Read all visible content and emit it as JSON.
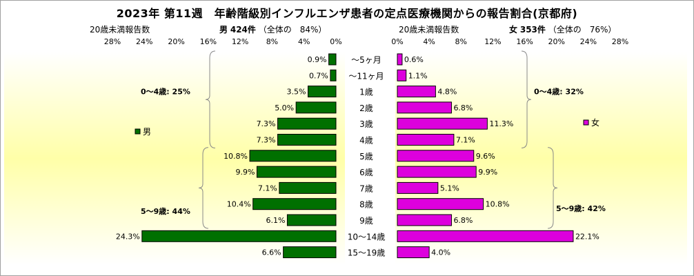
{
  "title": "2023年 第11週　年齢階級別インフルエンザ患者の定点医療機関からの報告割合(京都府)",
  "left_header": {
    "caption": "20歳未満報告数",
    "sex": "男",
    "count": "424件",
    "ratio": "（全体の　84%）"
  },
  "right_header": {
    "caption": "20歳未満報告数",
    "sex": "女",
    "count": "353件",
    "ratio": "（全体の　76%）"
  },
  "chart_data": {
    "type": "bar",
    "orientation": "horizontal-pyramid",
    "categories": [
      "～5ヶ月",
      "～11ヶ月",
      "1歳",
      "2歳",
      "3歳",
      "4歳",
      "5歳",
      "6歳",
      "7歳",
      "8歳",
      "9歳",
      "10～14歳",
      "15～19歳"
    ],
    "x_ticks_left": [
      "28%",
      "24%",
      "20%",
      "16%",
      "12%",
      "8%",
      "4%",
      "0%"
    ],
    "x_ticks_right": [
      "0%",
      "4%",
      "8%",
      "12%",
      "16%",
      "20%",
      "24%",
      "28%"
    ],
    "xlim": [
      0,
      28
    ],
    "series": [
      {
        "name": "男",
        "color": "#007000",
        "values": [
          0.9,
          0.7,
          3.5,
          5.0,
          7.3,
          7.3,
          10.8,
          9.9,
          7.1,
          10.4,
          6.1,
          24.3,
          6.6
        ],
        "labels": [
          "0.9%",
          "0.7%",
          "3.5%",
          "5.0%",
          "7.3%",
          "7.3%",
          "10.8%",
          "9.9%",
          "7.1%",
          "10.4%",
          "6.1%",
          "24.3%",
          "6.6%"
        ]
      },
      {
        "name": "女",
        "color": "#dd00dd",
        "values": [
          0.6,
          1.1,
          4.8,
          6.8,
          11.3,
          7.1,
          9.6,
          9.9,
          5.1,
          10.8,
          6.8,
          22.1,
          4.0
        ],
        "labels": [
          "0.6%",
          "1.1%",
          "4.8%",
          "6.8%",
          "11.3%",
          "7.1%",
          "9.6%",
          "9.9%",
          "5.1%",
          "10.8%",
          "6.8%",
          "22.1%",
          "4.0%"
        ]
      }
    ],
    "annotations": {
      "left_0_4": "0～4歳: 25%",
      "left_5_9": "5～9歳: 44%",
      "right_0_4": "0～4歳: 32%",
      "right_5_9": "5～9歳: 42%"
    },
    "legend": {
      "left": "男",
      "right": "女"
    },
    "grid": false
  }
}
